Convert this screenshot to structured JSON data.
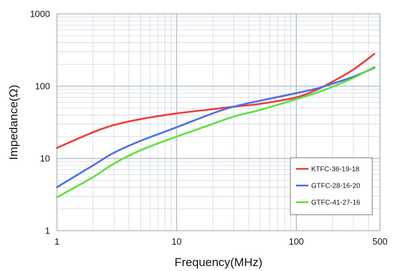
{
  "chart_data": {
    "type": "line",
    "title": "",
    "xlabel": "Frequency(MHz)",
    "ylabel": "Impedance(Ω)",
    "x_scale": "log",
    "y_scale": "log",
    "xlim": [
      1,
      500
    ],
    "ylim": [
      1,
      1000
    ],
    "grid": true,
    "legend_position": "bottom-right",
    "x_ticks": [
      {
        "value": 1,
        "label": "1"
      },
      {
        "value": 10,
        "label": "10"
      },
      {
        "value": 100,
        "label": "100"
      },
      {
        "value": 500,
        "label": "500"
      }
    ],
    "y_ticks": [
      {
        "value": 1,
        "label": "1"
      },
      {
        "value": 10,
        "label": "10"
      },
      {
        "value": 100,
        "label": "100"
      },
      {
        "value": 1000,
        "label": "1000"
      }
    ],
    "series": [
      {
        "name": "KTFC-36-19-18",
        "color": "#ee3b3b",
        "points": [
          [
            1,
            14
          ],
          [
            2,
            23
          ],
          [
            3,
            29
          ],
          [
            5,
            35
          ],
          [
            10,
            42
          ],
          [
            20,
            48
          ],
          [
            30,
            52
          ],
          [
            50,
            57
          ],
          [
            100,
            70
          ],
          [
            150,
            90
          ],
          [
            200,
            115
          ],
          [
            300,
            170
          ],
          [
            450,
            280
          ]
        ]
      },
      {
        "name": "GTFC-28-16-20",
        "color": "#4a6de8",
        "points": [
          [
            1,
            4
          ],
          [
            2,
            8
          ],
          [
            3,
            12
          ],
          [
            5,
            17.5
          ],
          [
            10,
            27
          ],
          [
            20,
            42
          ],
          [
            30,
            52
          ],
          [
            50,
            63
          ],
          [
            100,
            80
          ],
          [
            150,
            93
          ],
          [
            200,
            108
          ],
          [
            300,
            135
          ],
          [
            450,
            180
          ]
        ]
      },
      {
        "name": "GTFC-41-27-16",
        "color": "#5ae23a",
        "points": [
          [
            1,
            2.9
          ],
          [
            2,
            5.5
          ],
          [
            3,
            8.5
          ],
          [
            5,
            13
          ],
          [
            10,
            20
          ],
          [
            20,
            30
          ],
          [
            30,
            38
          ],
          [
            50,
            47
          ],
          [
            100,
            66
          ],
          [
            150,
            82
          ],
          [
            200,
            98
          ],
          [
            300,
            130
          ],
          [
            450,
            185
          ]
        ]
      }
    ]
  }
}
